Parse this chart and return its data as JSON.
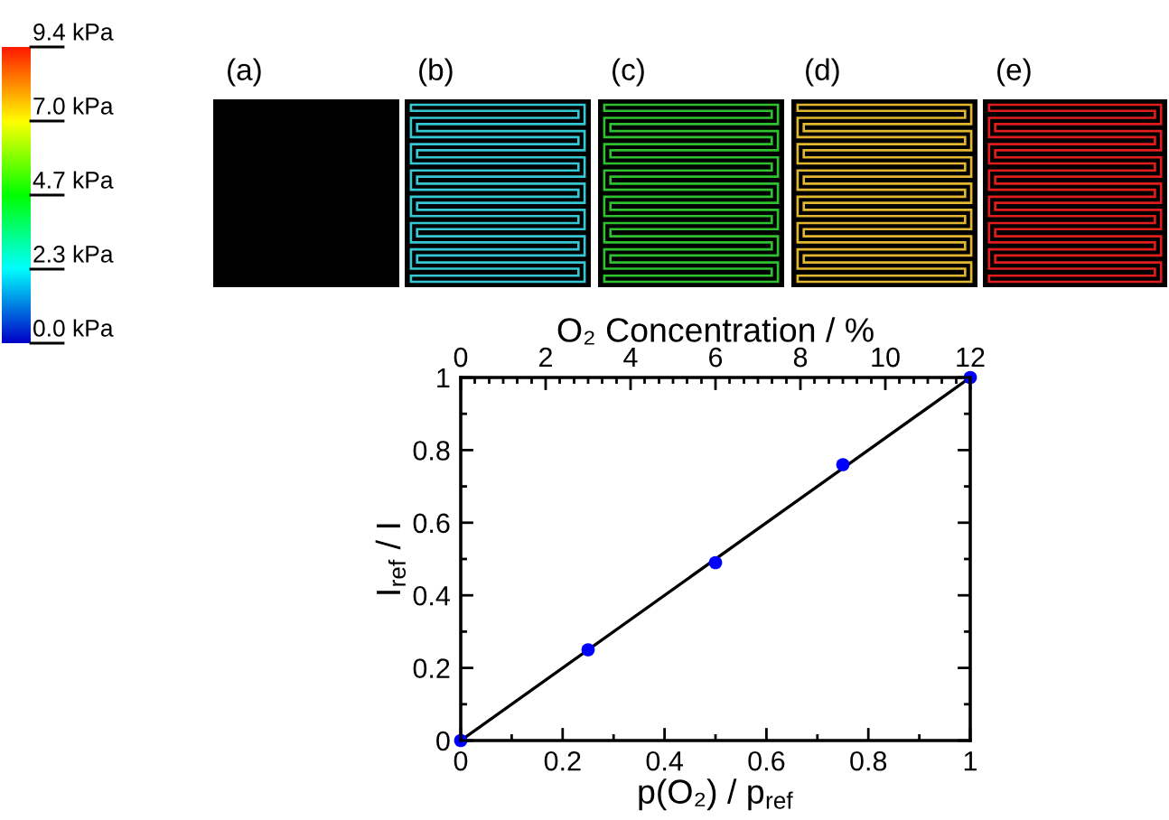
{
  "chart_data": [
    {
      "type": "other",
      "annotations": [
        "9.4 kPa",
        "7.0 kPa",
        "4.7 kPa",
        "2.3 kPa",
        "0.0 kPa"
      ]
    },
    {
      "type": "other",
      "annotations": [
        "(a)",
        "(b)",
        "(c)",
        "(d)",
        "(e)"
      ]
    },
    {
      "type": "scatter",
      "xlabel": "p(O₂) / p$_{ref}$",
      "ylabel": "I$_{ref}$ / I",
      "x2label": "O₂ Concentration / %",
      "xlim": [
        0,
        1
      ],
      "ylim": [
        0,
        1
      ],
      "x2lim": [
        0,
        12
      ],
      "xticks": [
        0,
        {
          "value": 0.1,
          "label": null
        },
        0.2,
        {
          "value": 0.3,
          "label": null
        },
        0.4,
        {
          "value": 0.5,
          "label": null
        },
        0.6,
        {
          "value": 0.7,
          "label": null
        },
        0.8,
        {
          "value": 0.9,
          "label": null
        },
        1
      ],
      "yticks": [
        0,
        {
          "value": 0.1,
          "label": null
        },
        0.2,
        {
          "value": 0.3,
          "label": null
        },
        0.4,
        {
          "value": 0.5,
          "label": null
        },
        0.6,
        {
          "value": 0.7,
          "label": null
        },
        0.8,
        {
          "value": 0.9,
          "label": null
        },
        1
      ],
      "x2ticks": [
        0,
        {
          "value": 0.33,
          "label": null
        },
        {
          "value": 0.67,
          "label": null
        },
        {
          "value": 1,
          "label": null
        },
        {
          "value": 1.33,
          "label": null
        },
        {
          "value": 1.67,
          "label": null
        },
        2,
        {
          "value": 2.33,
          "label": null
        },
        {
          "value": 2.67,
          "label": null
        },
        {
          "value": 3,
          "label": null
        },
        {
          "value": 3.33,
          "label": null
        },
        {
          "value": 3.67,
          "label": null
        },
        4,
        {
          "value": 4.33,
          "label": null
        },
        {
          "value": 4.67,
          "label": null
        },
        {
          "value": 5,
          "label": null
        },
        {
          "value": 5.33,
          "label": null
        },
        {
          "value": 5.67,
          "label": null
        },
        6,
        {
          "value": 6.33,
          "label": null
        },
        {
          "value": 6.67,
          "label": null
        },
        {
          "value": 7,
          "label": null
        },
        {
          "value": 7.33,
          "label": null
        },
        {
          "value": 7.67,
          "label": null
        },
        8,
        {
          "value": 8.33,
          "label": null
        },
        {
          "value": 8.67,
          "label": null
        },
        {
          "value": 9,
          "label": null
        },
        {
          "value": 9.33,
          "label": null
        },
        {
          "value": 9.67,
          "label": null
        },
        10,
        {
          "value": 10.33,
          "label": null
        },
        {
          "value": 10.67,
          "label": null
        },
        {
          "value": 11,
          "label": null
        },
        {
          "value": 11.33,
          "label": null
        },
        {
          "value": 11.67,
          "label": null
        },
        12
      ],
      "grid": false,
      "series": [
        {
          "type": "scatter",
          "marker": "circle",
          "color": "#0000ff",
          "x": [
            0,
            0.25,
            0.5,
            0.75,
            1
          ],
          "values": [
            0,
            0.25,
            0.49,
            0.76,
            1
          ]
        },
        {
          "type": "line",
          "marker": "none",
          "line_style": "solid",
          "color": "#000000",
          "x": [
            0,
            1
          ],
          "values": [
            0,
            1
          ]
        }
      ]
    }
  ]
}
